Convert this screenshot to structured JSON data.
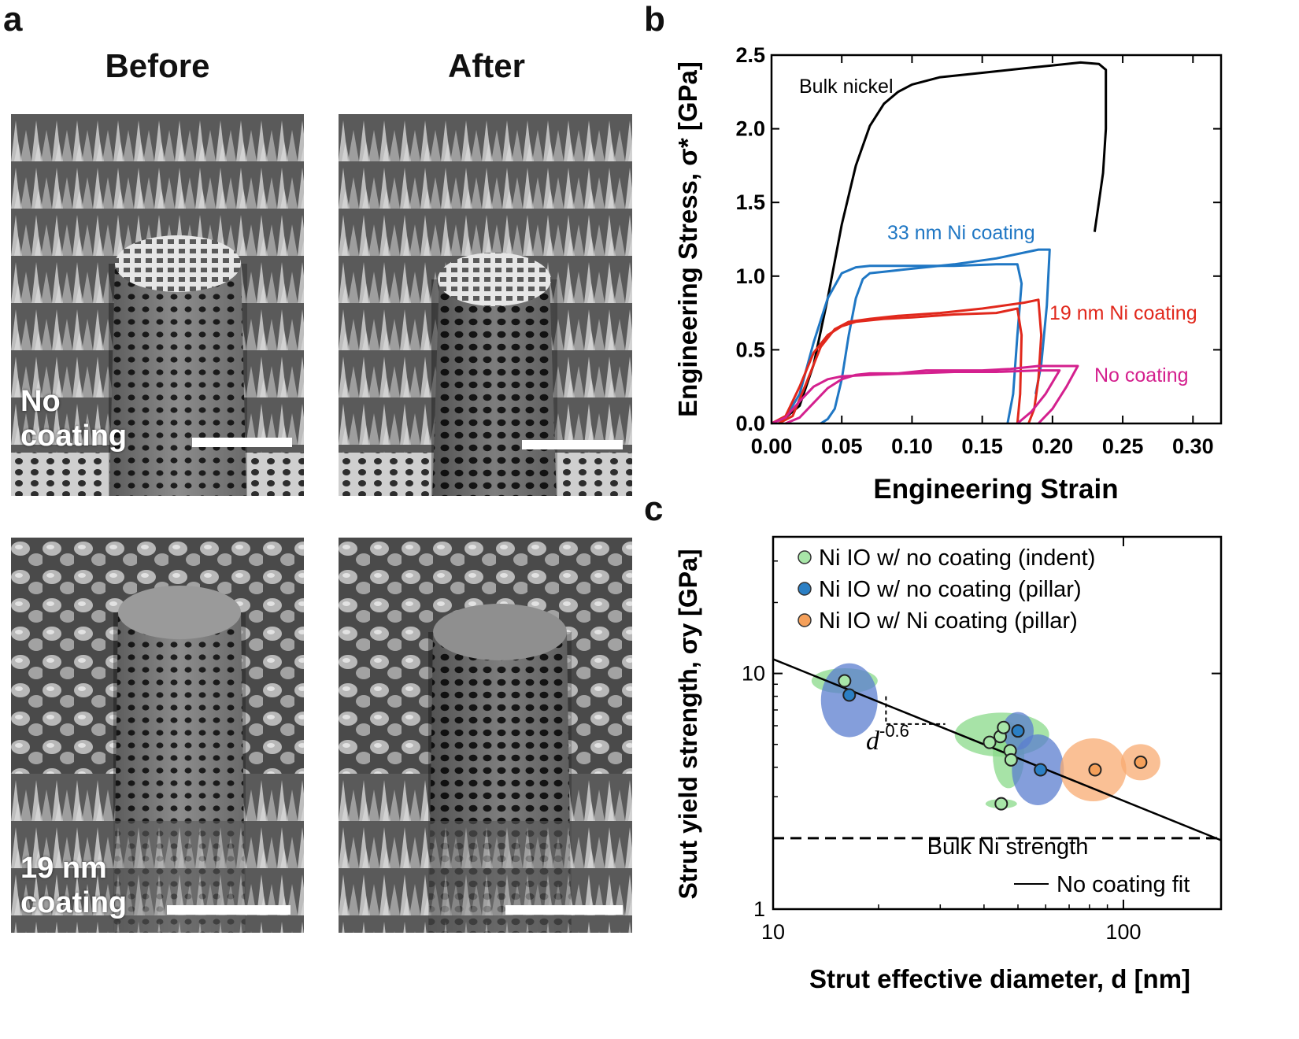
{
  "figure": {
    "panel_a_letter": "a",
    "panel_b_letter": "b",
    "panel_c_letter": "c",
    "col_before": "Before",
    "col_after": "After",
    "row1_label_line1": "No",
    "row1_label_line2": "coating",
    "row2_label_line1": "19 nm",
    "row2_label_line2": "coating"
  },
  "chart_data": [
    {
      "id": "b",
      "type": "line",
      "title": "",
      "xlabel": "Engineering Strain",
      "ylabel": "Engineering Stress, σ* [GPa]",
      "xlim": [
        0,
        0.32
      ],
      "ylim": [
        0,
        2.5
      ],
      "xticks": [
        "0.00",
        "0.05",
        "0.10",
        "0.15",
        "0.20",
        "0.25",
        "0.30"
      ],
      "yticks": [
        "0.0",
        "0.5",
        "1.0",
        "1.5",
        "2.0",
        "2.5"
      ],
      "annotations": [
        "Bulk nickel",
        "33 nm Ni coating",
        "19 nm Ni coating",
        "No coating"
      ],
      "series": [
        {
          "name": "Bulk nickel",
          "color": "#000000",
          "x": [
            0.0,
            0.01,
            0.02,
            0.03,
            0.04,
            0.05,
            0.06,
            0.07,
            0.08,
            0.09,
            0.1,
            0.12,
            0.15,
            0.18,
            0.2,
            0.22,
            0.233,
            0.238,
            0.238,
            0.236,
            0.233,
            0.23
          ],
          "y": [
            0.0,
            0.04,
            0.12,
            0.4,
            0.85,
            1.35,
            1.75,
            2.02,
            2.17,
            2.25,
            2.3,
            2.35,
            2.38,
            2.41,
            2.43,
            2.45,
            2.44,
            2.4,
            2.0,
            1.7,
            1.5,
            1.3
          ]
        },
        {
          "name": "33 nm Ni coating (1)",
          "color": "#1f77c4",
          "x": [
            0.0,
            0.01,
            0.02,
            0.03,
            0.04,
            0.05,
            0.06,
            0.07,
            0.08,
            0.1,
            0.13,
            0.16,
            0.175,
            0.178,
            0.175,
            0.172,
            0.168
          ],
          "y": [
            0.0,
            0.04,
            0.2,
            0.55,
            0.85,
            1.02,
            1.06,
            1.07,
            1.07,
            1.07,
            1.07,
            1.08,
            1.08,
            0.95,
            0.6,
            0.2,
            0.0
          ]
        },
        {
          "name": "33 nm Ni coating (2)",
          "color": "#1f77c4",
          "x": [
            0.035,
            0.04,
            0.045,
            0.05,
            0.055,
            0.06,
            0.065,
            0.07,
            0.08,
            0.1,
            0.13,
            0.16,
            0.19,
            0.198,
            0.196,
            0.192,
            0.188
          ],
          "y": [
            0.0,
            0.03,
            0.1,
            0.3,
            0.6,
            0.85,
            0.98,
            1.02,
            1.03,
            1.05,
            1.08,
            1.12,
            1.18,
            1.18,
            0.8,
            0.4,
            0.2
          ]
        },
        {
          "name": "19 nm Ni coating (1)",
          "color": "#e1281c",
          "x": [
            0.0,
            0.01,
            0.02,
            0.03,
            0.04,
            0.05,
            0.06,
            0.08,
            0.1,
            0.13,
            0.16,
            0.175,
            0.178,
            0.177,
            0.175
          ],
          "y": [
            0.0,
            0.05,
            0.25,
            0.48,
            0.6,
            0.66,
            0.69,
            0.71,
            0.72,
            0.74,
            0.75,
            0.78,
            0.6,
            0.2,
            0.0
          ]
        },
        {
          "name": "19 nm Ni coating (2)",
          "color": "#e1281c",
          "x": [
            0.005,
            0.015,
            0.025,
            0.035,
            0.045,
            0.055,
            0.07,
            0.09,
            0.12,
            0.15,
            0.18,
            0.19,
            0.192,
            0.19,
            0.187,
            0.183
          ],
          "y": [
            0.0,
            0.05,
            0.28,
            0.52,
            0.64,
            0.69,
            0.71,
            0.73,
            0.75,
            0.78,
            0.82,
            0.84,
            0.6,
            0.3,
            0.1,
            0.0
          ]
        },
        {
          "name": "No coating (1)",
          "color": "#d4208e",
          "x": [
            0.0,
            0.01,
            0.02,
            0.03,
            0.04,
            0.05,
            0.07,
            0.1,
            0.13,
            0.16,
            0.19,
            0.205,
            0.195,
            0.185,
            0.175
          ],
          "y": [
            0.0,
            0.04,
            0.15,
            0.25,
            0.3,
            0.32,
            0.33,
            0.34,
            0.35,
            0.35,
            0.36,
            0.36,
            0.2,
            0.08,
            0.0
          ]
        },
        {
          "name": "No coating (2)",
          "color": "#d4208e",
          "x": [
            0.01,
            0.02,
            0.03,
            0.04,
            0.05,
            0.06,
            0.07,
            0.09,
            0.1,
            0.11,
            0.15,
            0.17,
            0.18,
            0.19,
            0.21,
            0.218,
            0.21,
            0.2,
            0.19
          ],
          "y": [
            0.0,
            0.04,
            0.14,
            0.24,
            0.3,
            0.33,
            0.34,
            0.34,
            0.35,
            0.36,
            0.36,
            0.37,
            0.38,
            0.39,
            0.39,
            0.39,
            0.25,
            0.1,
            0.0
          ]
        }
      ]
    },
    {
      "id": "c",
      "type": "scatter",
      "title": "",
      "xlabel": "Strut effective diameter, d [nm]",
      "ylabel": "Strut yield strength, σy [GPa]",
      "xscale": "log",
      "yscale": "log",
      "xlim": [
        10,
        190
      ],
      "ylim": [
        1,
        38
      ],
      "xticks": [
        "10",
        "100"
      ],
      "yticks": [
        "1",
        "10"
      ],
      "legend": [
        "Ni IO w/ no coating (indent)",
        "Ni IO w/ no coating (pillar)",
        "Ni IO w/ Ni coating  (pillar)"
      ],
      "legend_position": "top",
      "slope_label": "d",
      "slope_exponent": "-0.6",
      "bulk_label": "Bulk Ni strength",
      "fit_label": "No coating fit",
      "bulk_strength": 2.0,
      "fit": {
        "x": [
          10,
          190
        ],
        "y": [
          11.5,
          1.96
        ]
      },
      "series": [
        {
          "name": "Ni IO w/ no coating (indent)",
          "color": "#a8e6a8",
          "fill": "#8ad98a",
          "x": [
            16.0,
            41.5,
            44.5,
            45.5,
            47.5,
            47.8,
            44.8
          ],
          "y": [
            9.3,
            5.1,
            5.4,
            5.9,
            4.7,
            4.3,
            2.8
          ]
        },
        {
          "name": "Ni IO w/ no coating (pillar)",
          "color": "#2b7fc4",
          "fill": "#5b7ecf",
          "x": [
            16.5,
            50.0,
            58.0
          ],
          "y": [
            8.1,
            5.7,
            3.9
          ]
        },
        {
          "name": "Ni IO w/ Ni coating  (pillar)",
          "color": "#f5a05a",
          "fill": "#f8ab72",
          "x": [
            83.0,
            112.0
          ],
          "y": [
            3.9,
            4.2
          ]
        }
      ]
    }
  ]
}
